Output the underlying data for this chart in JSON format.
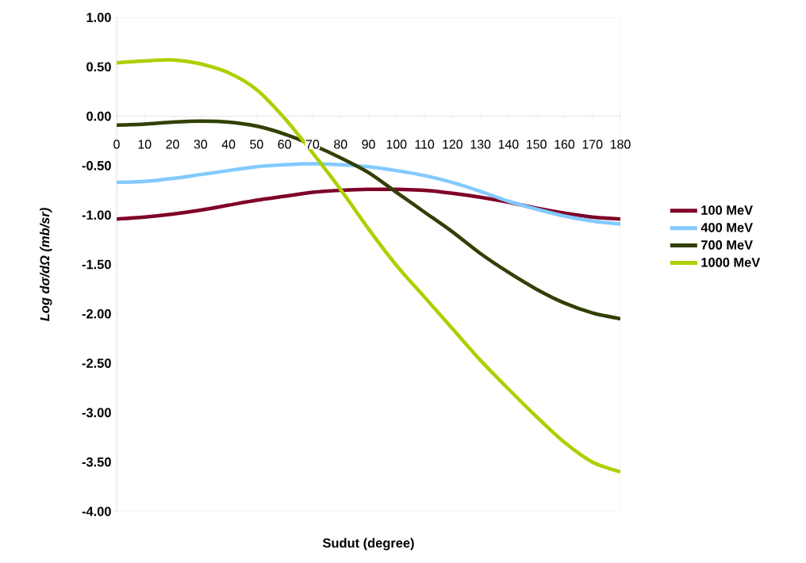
{
  "chart_data": {
    "type": "line",
    "xlabel": "Sudut (degree)",
    "ylabel": "Log dσ/dΩ (mb/sr)",
    "x": [
      0,
      10,
      20,
      30,
      40,
      50,
      60,
      70,
      80,
      90,
      100,
      110,
      120,
      130,
      140,
      150,
      160,
      170,
      180
    ],
    "series": [
      {
        "name": "100 MeV",
        "color": "#7f0027",
        "values": [
          -1.04,
          -1.02,
          -0.99,
          -0.95,
          -0.9,
          -0.85,
          -0.81,
          -0.77,
          -0.75,
          -0.74,
          -0.74,
          -0.75,
          -0.78,
          -0.82,
          -0.87,
          -0.93,
          -0.98,
          -1.02,
          -1.04
        ]
      },
      {
        "name": "400 MeV",
        "color": "#83caff",
        "values": [
          -0.67,
          -0.66,
          -0.63,
          -0.59,
          -0.55,
          -0.51,
          -0.49,
          -0.48,
          -0.49,
          -0.51,
          -0.55,
          -0.6,
          -0.67,
          -0.76,
          -0.86,
          -0.94,
          -1.01,
          -1.06,
          -1.09
        ]
      },
      {
        "name": "700 MeV",
        "color": "#314004",
        "values": [
          -0.09,
          -0.08,
          -0.06,
          -0.05,
          -0.06,
          -0.1,
          -0.18,
          -0.29,
          -0.42,
          -0.57,
          -0.77,
          -0.97,
          -1.17,
          -1.39,
          -1.58,
          -1.75,
          -1.89,
          -1.99,
          -2.05
        ]
      },
      {
        "name": "1000 MeV",
        "color": "#aecf00",
        "values": [
          0.54,
          0.56,
          0.57,
          0.53,
          0.44,
          0.27,
          -0.02,
          -0.37,
          -0.74,
          -1.14,
          -1.51,
          -1.83,
          -2.15,
          -2.47,
          -2.76,
          -3.04,
          -3.3,
          -3.5,
          -3.6
        ]
      }
    ],
    "xlim": [
      0,
      180
    ],
    "xticks": [
      0,
      10,
      20,
      30,
      40,
      50,
      60,
      70,
      80,
      90,
      100,
      110,
      120,
      130,
      140,
      150,
      160,
      170,
      180
    ],
    "ylim": [
      -4,
      1
    ],
    "yticks": [
      {
        "value": -4,
        "label": "-4.00"
      },
      {
        "value": -3.5,
        "label": "-3.50"
      },
      {
        "value": -3,
        "label": "-3.00"
      },
      {
        "value": -2.5,
        "label": "-2.50"
      },
      {
        "value": -2,
        "label": "-2.00"
      },
      {
        "value": -1.5,
        "label": "-1.50"
      },
      {
        "value": -1,
        "label": "-1.00"
      },
      {
        "value": -0.5,
        "label": "-0.50"
      },
      {
        "value": 0,
        "label": "0.00"
      },
      {
        "value": 0.5,
        "label": "0.50"
      },
      {
        "value": 1,
        "label": "1.00"
      }
    ],
    "legend": "right",
    "marker": "none",
    "line_style": "solid"
  }
}
